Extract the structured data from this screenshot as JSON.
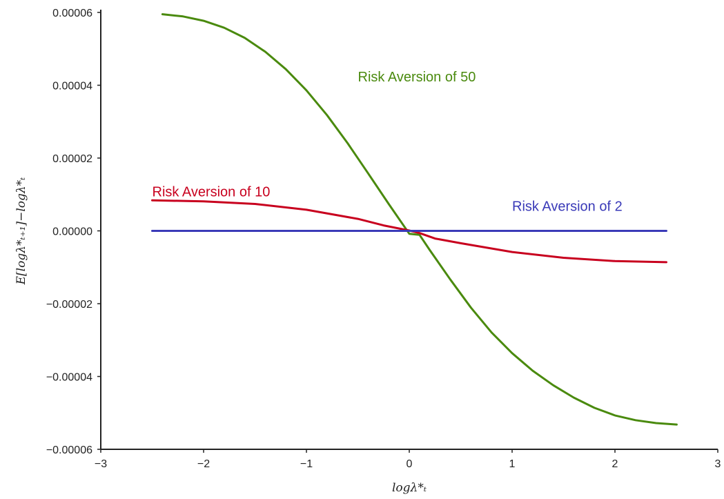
{
  "chart_data": {
    "type": "line",
    "title": "",
    "xlabel": "logλ*ₜ",
    "ylabel": "E[logλ*ₜ₊₁]−logλ*ₜ",
    "xlim": [
      -3,
      3
    ],
    "ylim": [
      -6e-05,
      6e-05
    ],
    "grid": false,
    "x_ticks": [
      {
        "value": -3,
        "label": "−3"
      },
      {
        "value": -2,
        "label": "−2"
      },
      {
        "value": -1,
        "label": "−1"
      },
      {
        "value": 0,
        "label": "0"
      },
      {
        "value": 1,
        "label": "1"
      },
      {
        "value": 2,
        "label": "2"
      },
      {
        "value": 3,
        "label": "3"
      }
    ],
    "y_ticks": [
      {
        "value": 6e-05,
        "label": "0.00006"
      },
      {
        "value": 4e-05,
        "label": "0.00004"
      },
      {
        "value": 2e-05,
        "label": "0.00002"
      },
      {
        "value": 0.0,
        "label": "0.00000"
      },
      {
        "value": -2e-05,
        "label": "−0.00002"
      },
      {
        "value": -4e-05,
        "label": "−0.00004"
      },
      {
        "value": -6e-05,
        "label": "−0.00006"
      }
    ],
    "series": [
      {
        "name": "Risk Aversion of 50",
        "color": "#4a8a0e",
        "label_at": {
          "x": -0.5,
          "y": 4.1e-05
        },
        "x": [
          -2.4,
          -2.2,
          -2.0,
          -1.8,
          -1.6,
          -1.4,
          -1.2,
          -1.0,
          -0.8,
          -0.6,
          -0.4,
          -0.2,
          0.0,
          0.1,
          0.2,
          0.4,
          0.6,
          0.8,
          1.0,
          1.2,
          1.4,
          1.6,
          1.8,
          2.0,
          2.2,
          2.4,
          2.6
        ],
        "y": [
          5.95e-05,
          5.89e-05,
          5.77e-05,
          5.58e-05,
          5.3e-05,
          4.92e-05,
          4.44e-05,
          3.86e-05,
          3.18e-05,
          2.41e-05,
          1.58e-05,
          7.4e-06,
          -8e-07,
          -1.1e-06,
          -5.3e-06,
          -1.34e-05,
          -2.11e-05,
          -2.79e-05,
          -3.36e-05,
          -3.84e-05,
          -4.24e-05,
          -4.58e-05,
          -4.86e-05,
          -5.07e-05,
          -5.2e-05,
          -5.28e-05,
          -5.32e-05
        ]
      },
      {
        "name": "Risk Aversion of 10",
        "color": "#c8001e",
        "label_at": {
          "x": -2.5,
          "y": 9.5e-06
        },
        "x": [
          -2.5,
          -2.0,
          -1.5,
          -1.0,
          -0.5,
          -0.25,
          0.0,
          0.1,
          0.25,
          0.5,
          1.0,
          1.5,
          2.0,
          2.5
        ],
        "y": [
          8.4e-06,
          8.1e-06,
          7.4e-06,
          5.8e-06,
          3.3e-06,
          1.5e-06,
          1e-07,
          -6e-07,
          -2.1e-06,
          -3.4e-06,
          -5.8e-06,
          -7.4e-06,
          -8.3e-06,
          -8.6e-06
        ]
      },
      {
        "name": "Risk Aversion of 2",
        "color": "#3a3ab8",
        "label_at": {
          "x": 1.0,
          "y": 5.5e-06
        },
        "x": [
          -2.5,
          2.5
        ],
        "y": [
          0.0,
          0.0
        ]
      }
    ]
  }
}
